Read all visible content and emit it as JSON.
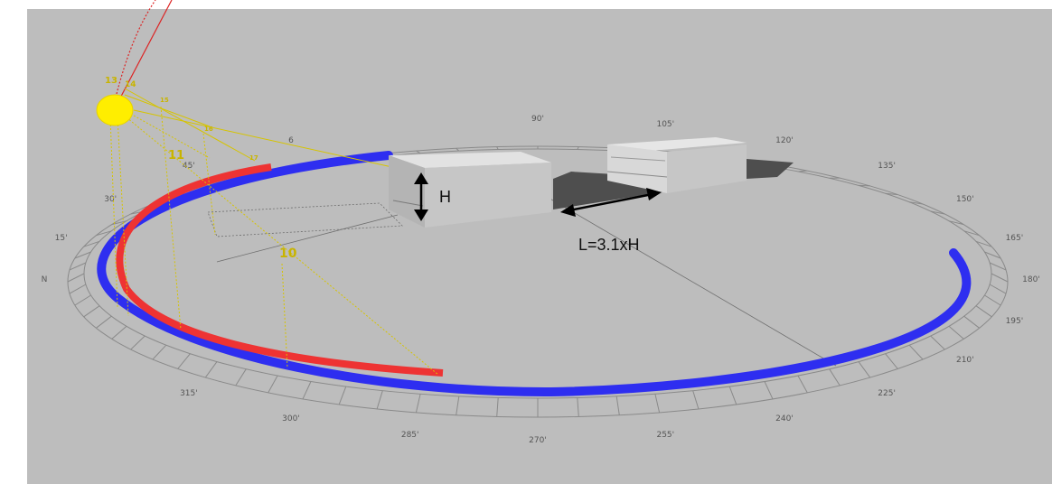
{
  "colors": {
    "background": "#bdbdbd",
    "winter_path": "#ee3333",
    "summer_path": "#2e2ef0",
    "sun": "#ffee00",
    "guide": "#d6c400",
    "building_top": "#e2e2e2",
    "building_front": "#c6c6c6",
    "building_side": "#b4b4b4",
    "shadow": "#4e4e4e"
  },
  "compass_labels": [
    {
      "deg": 195,
      "text": "195'"
    },
    {
      "deg": 210,
      "text": "210'"
    },
    {
      "deg": 225,
      "text": "225'"
    },
    {
      "deg": 240,
      "text": "240'"
    },
    {
      "deg": 255,
      "text": "255'"
    },
    {
      "deg": 270,
      "text": "270'"
    },
    {
      "deg": 285,
      "text": "285'"
    },
    {
      "deg": 300,
      "text": "300'"
    },
    {
      "deg": 315,
      "text": "315'"
    },
    {
      "deg": 0,
      "text": "N"
    },
    {
      "deg": 15,
      "text": "15'"
    },
    {
      "deg": 30,
      "text": "30'"
    },
    {
      "deg": 45,
      "text": "45'"
    },
    {
      "deg": 60,
      "text": "6"
    },
    {
      "deg": 90,
      "text": "90'"
    },
    {
      "deg": 105,
      "text": "105'"
    },
    {
      "deg": 120,
      "text": "120'"
    },
    {
      "deg": 135,
      "text": "135'"
    },
    {
      "deg": 150,
      "text": "150'"
    },
    {
      "deg": 165,
      "text": "165'"
    },
    {
      "deg": 180,
      "text": "180'"
    }
  ],
  "hour_labels": [
    {
      "text": "13"
    },
    {
      "text": "14"
    },
    {
      "text": "15"
    },
    {
      "text": "16"
    },
    {
      "text": "17"
    },
    {
      "text": "11"
    },
    {
      "text": "10"
    }
  ],
  "annotations": {
    "height_label": "H",
    "distance_label": "L=3.1xH"
  }
}
